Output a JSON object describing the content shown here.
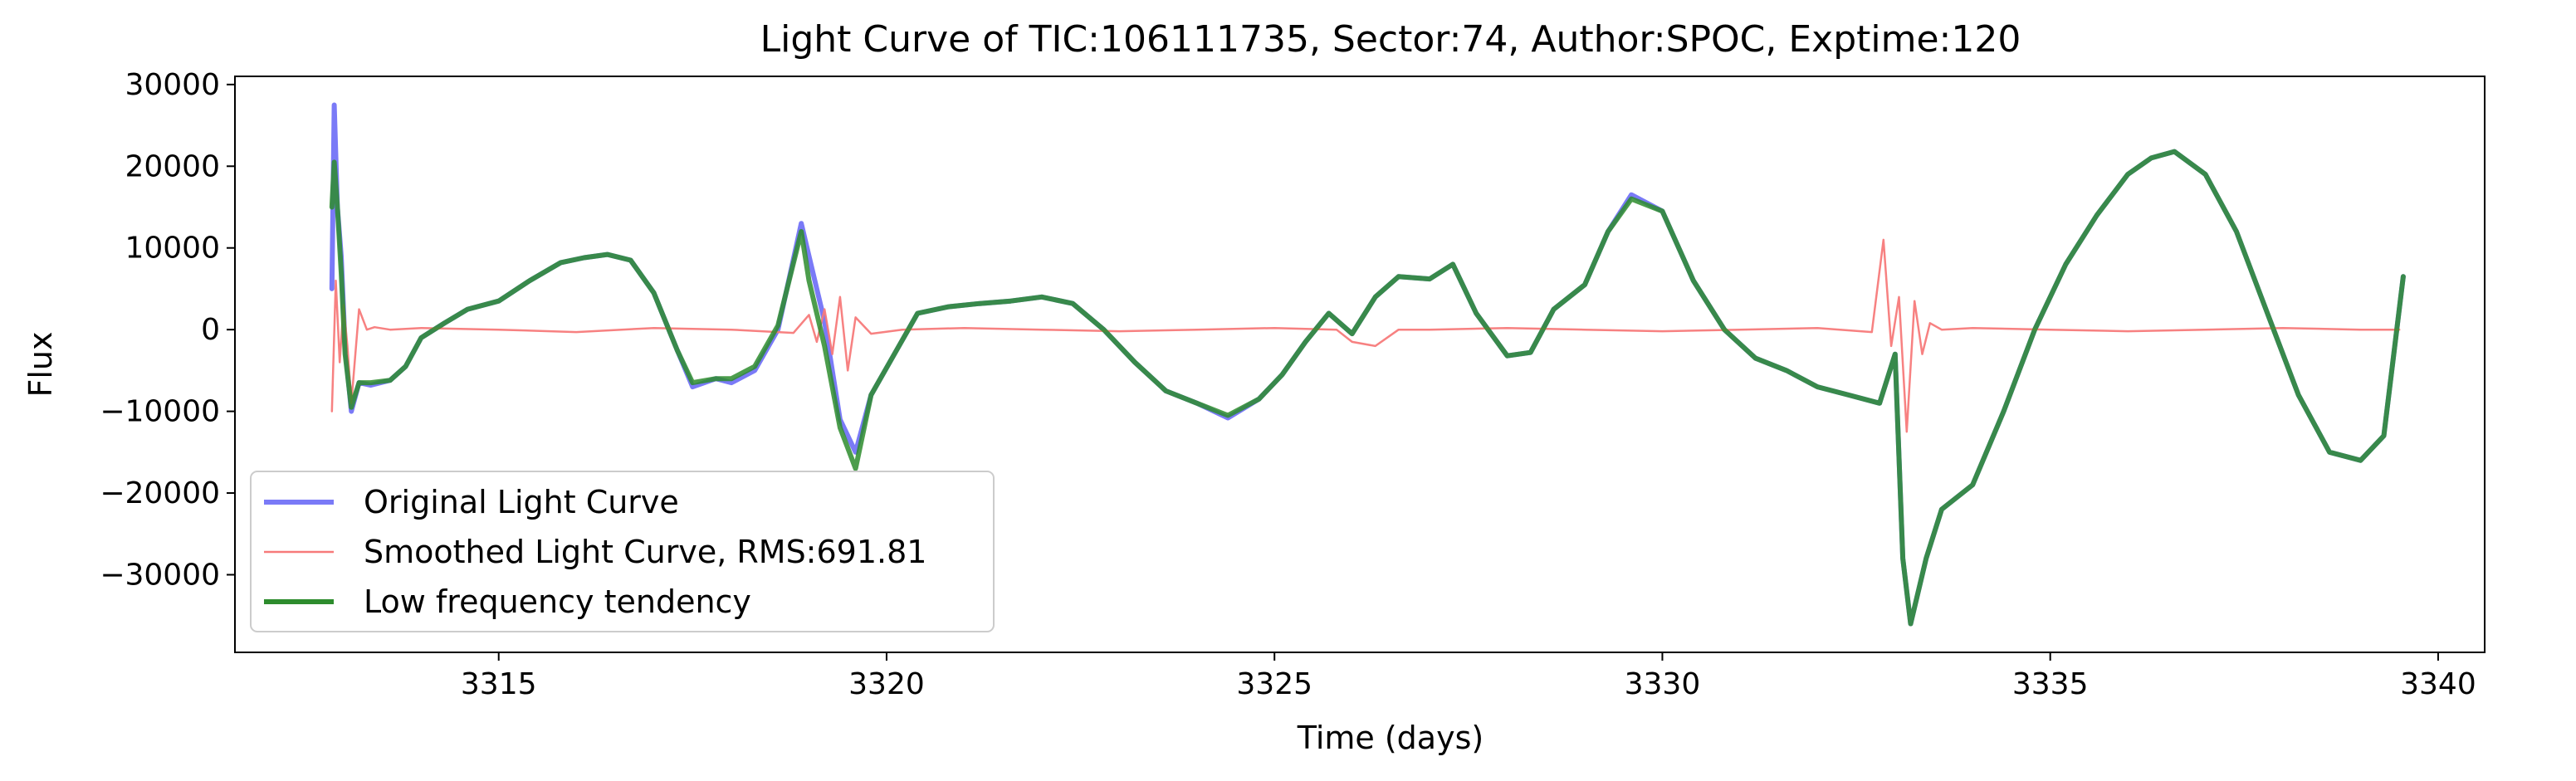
{
  "chart_data": {
    "type": "line",
    "title": "Light Curve of TIC:106111735, Sector:74, Author:SPOC, Exptime:120",
    "xlabel": "Time (days)",
    "ylabel": "Flux",
    "xlim": [
      3311.6,
      3340.6
    ],
    "ylim": [
      -39500,
      31000
    ],
    "xticks": [
      3315,
      3320,
      3325,
      3330,
      3335,
      3340
    ],
    "yticks": [
      -30000,
      -20000,
      -10000,
      0,
      10000,
      20000,
      30000
    ],
    "xtick_labels": [
      "3315",
      "3320",
      "3325",
      "3330",
      "3335",
      "3340"
    ],
    "ytick_labels": [
      "−30000",
      "−20000",
      "−10000",
      "0",
      "10000",
      "20000",
      "30000"
    ],
    "grid": false,
    "legend_position": "lower-left",
    "series": [
      {
        "name": "Original Light Curve",
        "color": "#7a7af7",
        "x": [
          3312.85,
          3312.88,
          3312.92,
          3312.97,
          3313.02,
          3313.1,
          3313.2,
          3313.35,
          3313.6,
          3313.8,
          3314.0,
          3314.3,
          3314.6,
          3315.0,
          3315.4,
          3315.8,
          3316.1,
          3316.4,
          3316.7,
          3317.0,
          3317.3,
          3317.5,
          3317.8,
          3318.0,
          3318.3,
          3318.6,
          3318.9,
          3319.0,
          3319.2,
          3319.4,
          3319.6,
          3319.8,
          3320.1,
          3320.4,
          3320.8,
          3321.2,
          3321.6,
          3322.0,
          3322.4,
          3322.8,
          3323.2,
          3323.6,
          3324.0,
          3324.4,
          3324.8,
          3325.1,
          3325.4,
          3325.7,
          3326.0,
          3326.3,
          3326.6,
          3327.0,
          3327.3,
          3327.6,
          3328.0,
          3328.3,
          3328.6,
          3329.0,
          3329.3,
          3329.6,
          3330.0,
          3330.4,
          3330.8,
          3331.2,
          3331.6,
          3332.0,
          3332.4,
          3332.8,
          3333.0,
          3333.1,
          3333.2,
          3333.4,
          3333.6,
          3334.0,
          3334.4,
          3334.8,
          3335.2,
          3335.6,
          3336.0,
          3336.3,
          3336.6,
          3337.0,
          3337.4,
          3337.8,
          3338.2,
          3338.6,
          3339.0,
          3339.3,
          3339.55
        ],
        "y": [
          5000,
          27500,
          15000,
          9000,
          -2000,
          -10000,
          -6500,
          -6800,
          -6200,
          -4500,
          -1000,
          800,
          2500,
          3500,
          6000,
          8200,
          8800,
          9200,
          8500,
          4500,
          -2500,
          -7000,
          -6000,
          -6500,
          -5000,
          0,
          13000,
          9000,
          1000,
          -11000,
          -15000,
          -8000,
          -3000,
          2000,
          2800,
          3200,
          3500,
          4000,
          3200,
          0,
          -4000,
          -7500,
          -9000,
          -10800,
          -8500,
          -5500,
          -1500,
          2000,
          -500,
          4000,
          6500,
          6200,
          8000,
          2000,
          -3200,
          -2800,
          2500,
          5500,
          12000,
          16500,
          14500,
          6000,
          0,
          -3500,
          -5000,
          -7000,
          -8000,
          -9000,
          -3000,
          -28000,
          -36000,
          -28000,
          -22000,
          -19000,
          -10000,
          0,
          8000,
          14000,
          19000,
          21000,
          21800,
          19000,
          12000,
          2000,
          -8000,
          -15000,
          -16000,
          -13000,
          6500
        ]
      },
      {
        "name": "Smoothed Light Curve, RMS:691.81",
        "color": "#f77a7a",
        "x": [
          3312.85,
          3312.9,
          3312.95,
          3313.0,
          3313.05,
          3313.1,
          3313.2,
          3313.3,
          3313.4,
          3313.6,
          3314.0,
          3315.0,
          3316.0,
          3317.0,
          3318.0,
          3318.8,
          3319.0,
          3319.1,
          3319.2,
          3319.3,
          3319.4,
          3319.5,
          3319.6,
          3319.8,
          3320.2,
          3321.0,
          3322.0,
          3323.0,
          3324.0,
          3325.0,
          3325.8,
          3326.0,
          3326.3,
          3326.6,
          3327.0,
          3328.0,
          3329.0,
          3330.0,
          3331.0,
          3332.0,
          3332.7,
          3332.85,
          3332.95,
          3333.05,
          3333.15,
          3333.25,
          3333.35,
          3333.45,
          3333.6,
          3334.0,
          3335.0,
          3336.0,
          3337.0,
          3338.0,
          3339.0,
          3339.5
        ],
        "y": [
          -10000,
          6000,
          -4000,
          3000,
          -2000,
          -9000,
          2500,
          0,
          300,
          0,
          200,
          0,
          -300,
          200,
          0,
          -400,
          1800,
          -1500,
          2500,
          -3000,
          4000,
          -5000,
          1500,
          -500,
          0,
          200,
          0,
          -200,
          0,
          200,
          0,
          -1500,
          -2000,
          0,
          0,
          200,
          0,
          -200,
          0,
          200,
          -300,
          11000,
          -2000,
          4000,
          -12500,
          3500,
          -3000,
          800,
          0,
          200,
          0,
          -200,
          0,
          200,
          0,
          0
        ]
      },
      {
        "name": "Low frequency tendency",
        "color": "#2d8c2d",
        "x": [
          3312.85,
          3312.88,
          3312.92,
          3312.97,
          3313.02,
          3313.1,
          3313.2,
          3313.35,
          3313.6,
          3313.8,
          3314.0,
          3314.3,
          3314.6,
          3315.0,
          3315.4,
          3315.8,
          3316.1,
          3316.4,
          3316.7,
          3317.0,
          3317.3,
          3317.5,
          3317.8,
          3318.0,
          3318.3,
          3318.6,
          3318.9,
          3319.0,
          3319.2,
          3319.4,
          3319.6,
          3319.8,
          3320.1,
          3320.4,
          3320.8,
          3321.2,
          3321.6,
          3322.0,
          3322.4,
          3322.8,
          3323.2,
          3323.6,
          3324.0,
          3324.4,
          3324.8,
          3325.1,
          3325.4,
          3325.7,
          3326.0,
          3326.3,
          3326.6,
          3327.0,
          3327.3,
          3327.6,
          3328.0,
          3328.3,
          3328.6,
          3329.0,
          3329.3,
          3329.6,
          3330.0,
          3330.4,
          3330.8,
          3331.2,
          3331.6,
          3332.0,
          3332.4,
          3332.8,
          3333.0,
          3333.1,
          3333.2,
          3333.4,
          3333.6,
          3334.0,
          3334.4,
          3334.8,
          3335.2,
          3335.6,
          3336.0,
          3336.3,
          3336.6,
          3337.0,
          3337.4,
          3337.8,
          3338.2,
          3338.6,
          3339.0,
          3339.3,
          3339.55
        ],
        "y": [
          15000,
          20500,
          15000,
          7000,
          -3000,
          -9500,
          -6500,
          -6500,
          -6200,
          -4500,
          -1000,
          800,
          2500,
          3500,
          6000,
          8200,
          8800,
          9200,
          8500,
          4500,
          -2500,
          -6500,
          -6000,
          -6000,
          -4500,
          500,
          12000,
          6000,
          -2000,
          -12000,
          -17000,
          -8000,
          -3000,
          2000,
          2800,
          3200,
          3500,
          4000,
          3200,
          0,
          -4000,
          -7500,
          -9000,
          -10500,
          -8500,
          -5500,
          -1500,
          2000,
          -500,
          4000,
          6500,
          6200,
          8000,
          2000,
          -3200,
          -2800,
          2500,
          5500,
          12000,
          16000,
          14500,
          6000,
          0,
          -3500,
          -5000,
          -7000,
          -8000,
          -9000,
          -3000,
          -28000,
          -36000,
          -28000,
          -22000,
          -19000,
          -10000,
          0,
          8000,
          14000,
          19000,
          21000,
          21800,
          19000,
          12000,
          2000,
          -8000,
          -15000,
          -16000,
          -13000,
          6500
        ]
      }
    ]
  }
}
